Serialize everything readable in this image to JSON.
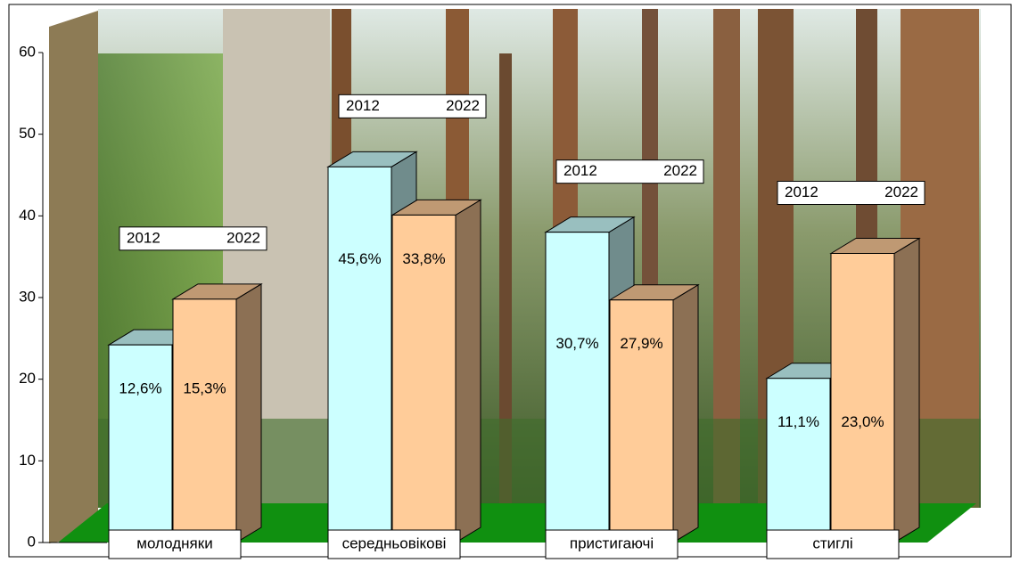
{
  "chart_data": {
    "type": "bar3d",
    "categories": [
      "молодняки",
      "середньовікові",
      "пристигаючі",
      "стиглі"
    ],
    "series": [
      {
        "name": "2012",
        "color": "#ccffff",
        "values": [
          24.2,
          46,
          38,
          20.1
        ],
        "bar_texts": [
          "12,6%",
          "45,6%",
          "30,7%",
          "11,1%"
        ]
      },
      {
        "name": "2022",
        "color": "#ffcc99",
        "values": [
          29.8,
          40.1,
          29.7,
          35.4
        ],
        "bar_texts": [
          "15,3%",
          "33,8%",
          "27,9%",
          "23,0%"
        ]
      }
    ],
    "ylim": [
      0,
      60
    ],
    "yticks": [
      0,
      10,
      20,
      30,
      40,
      50,
      60
    ]
  }
}
